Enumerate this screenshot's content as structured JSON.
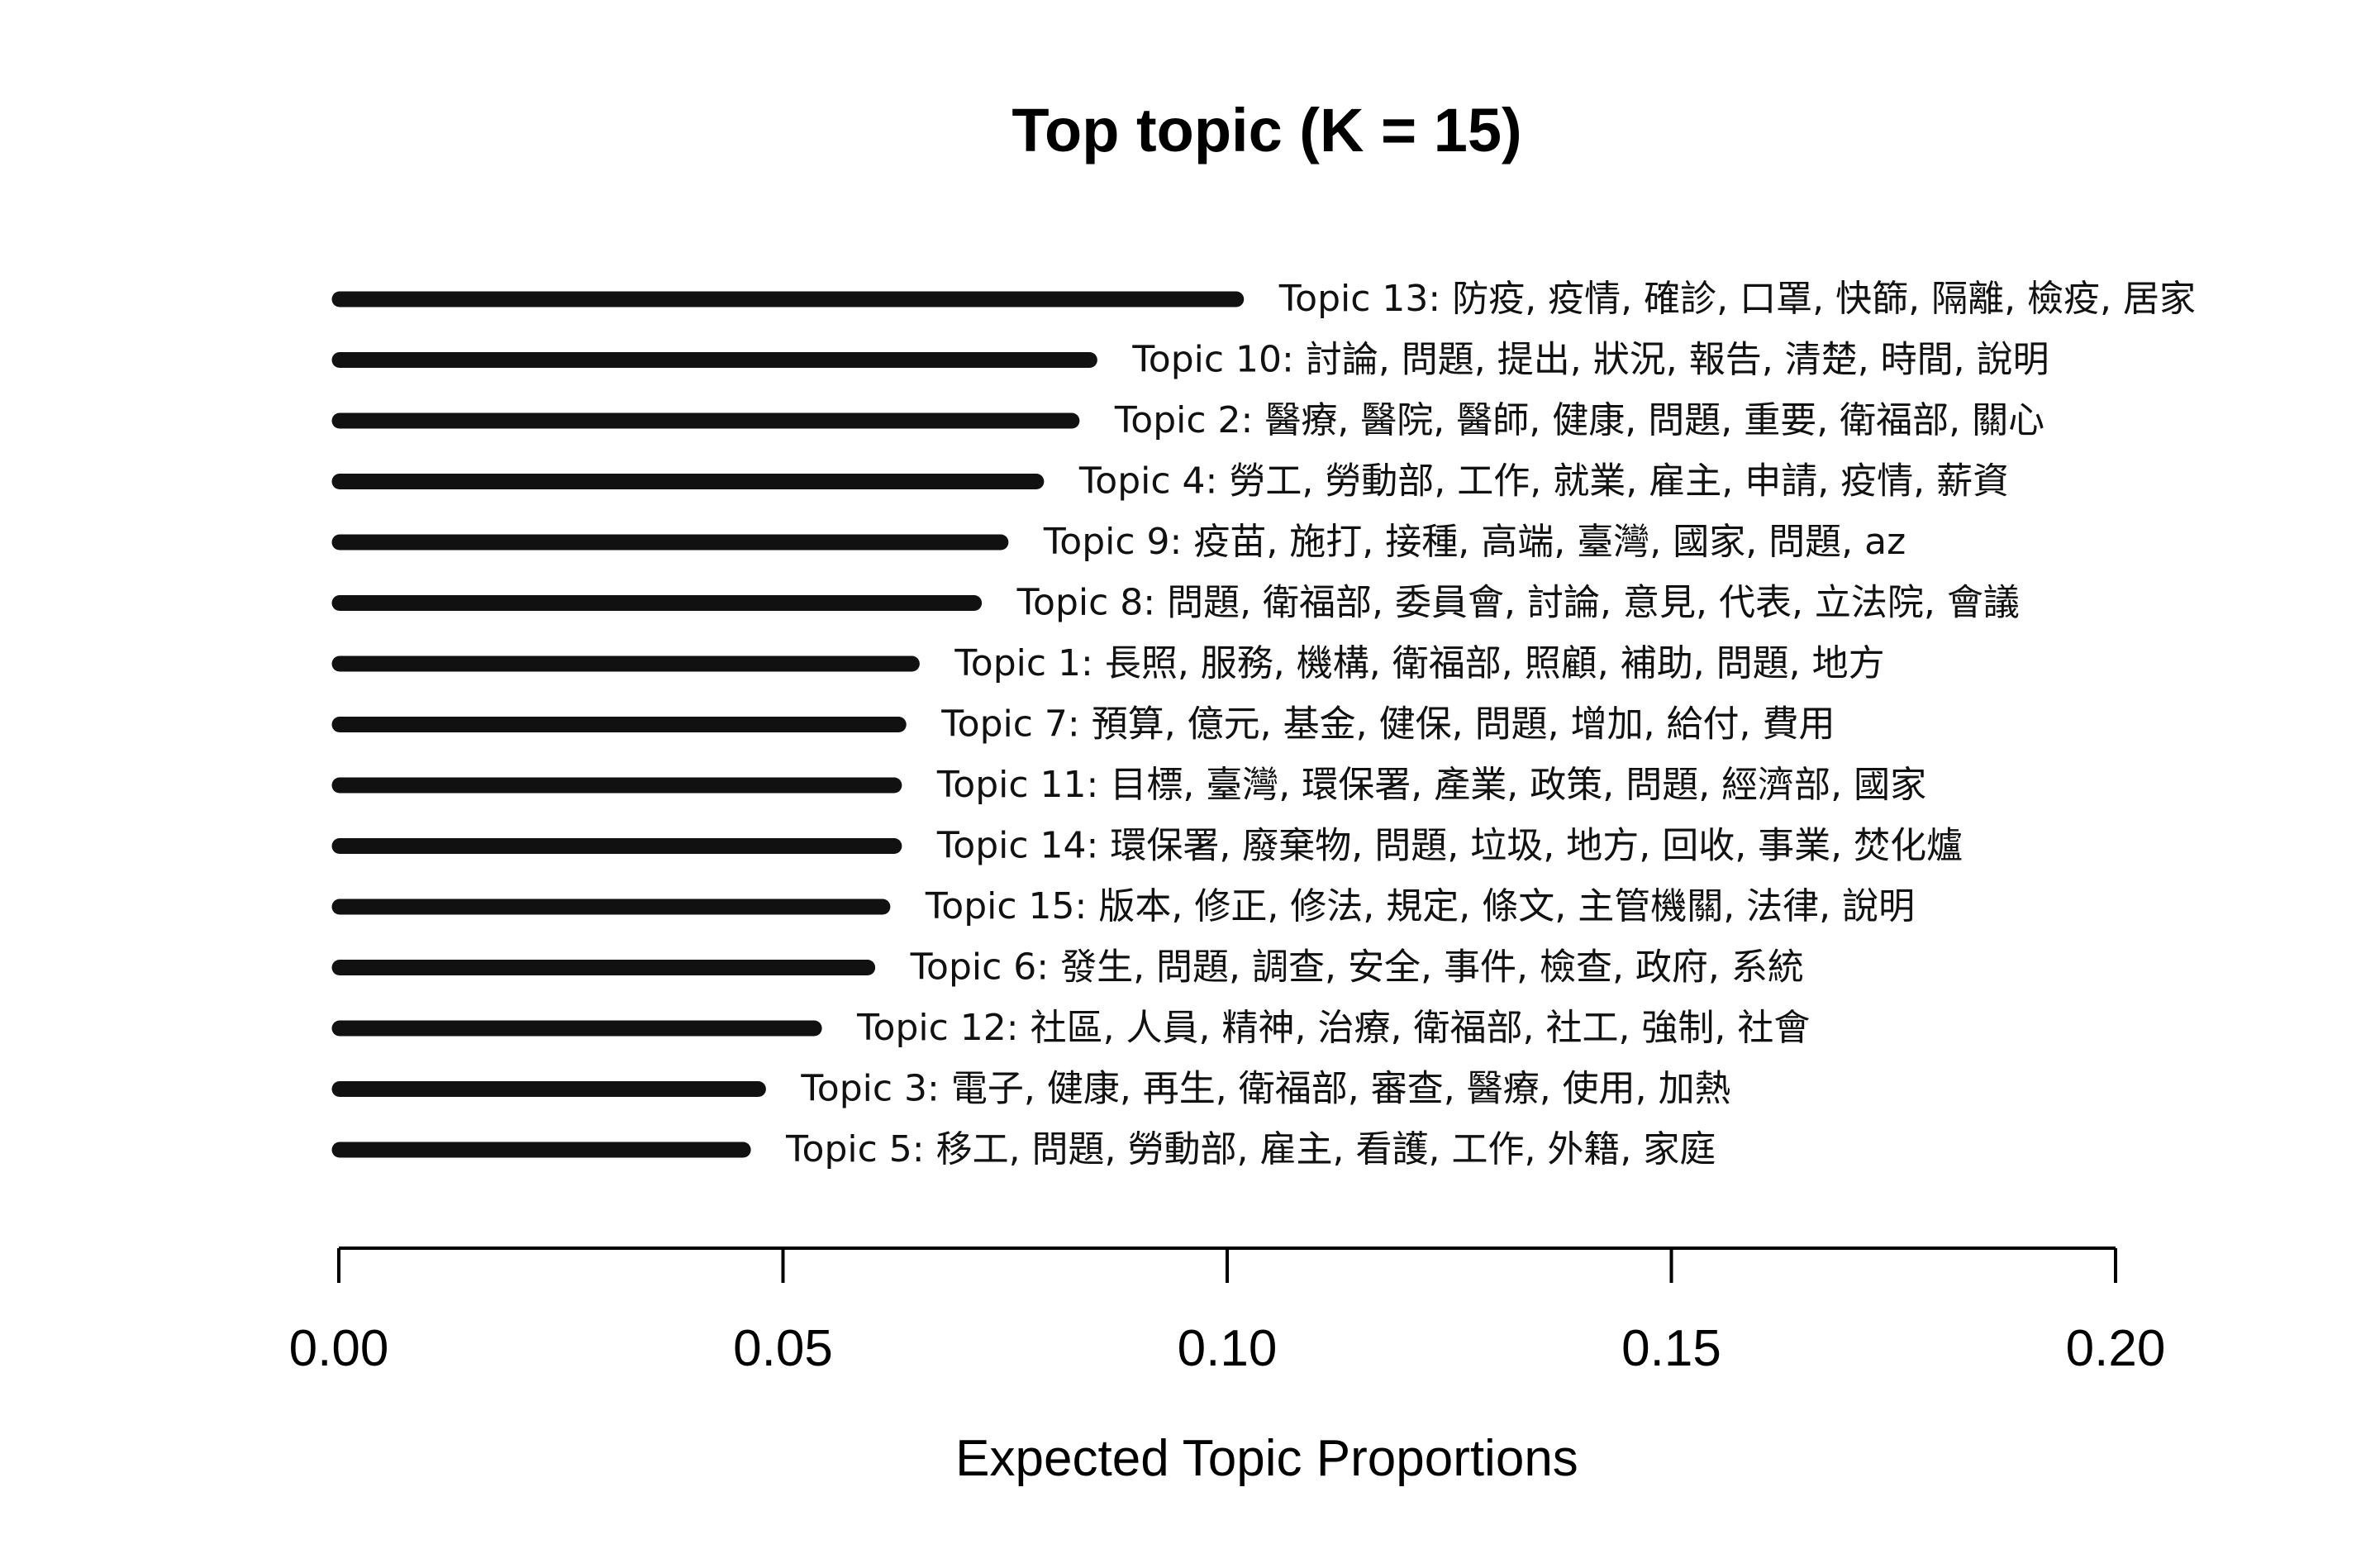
{
  "chart_data": {
    "type": "bar",
    "orientation": "horizontal",
    "title": "Top topic (K = 15)",
    "xlabel": "Expected Topic Proportions",
    "ylabel": "",
    "xlim": [
      0,
      0.2
    ],
    "xticks": [
      "0.00",
      "0.05",
      "0.10",
      "0.15",
      "0.20"
    ],
    "grid": false,
    "bar_color": "#111111",
    "categories": [
      "Topic 13: 防疫, 疫情, 確診, 口罩, 快篩, 隔離, 檢疫, 居家",
      "Topic 10: 討論, 問題, 提出, 狀況, 報告, 清楚, 時間, 說明",
      "Topic 2: 醫療, 醫院, 醫師, 健康, 問題, 重要, 衛福部, 關心",
      "Topic 4: 勞工, 勞動部, 工作, 就業, 雇主, 申請, 疫情, 薪資",
      "Topic 9: 疫苗, 施打, 接種, 高端, 臺灣, 國家, 問題, az",
      "Topic 8: 問題, 衛福部, 委員會, 討論, 意見, 代表, 立法院, 會議",
      "Topic 1: 長照, 服務, 機構, 衛福部, 照顧, 補助, 問題, 地方",
      "Topic 7: 預算, 億元, 基金, 健保, 問題, 增加, 給付, 費用",
      "Topic 11: 目標, 臺灣, 環保署, 產業, 政策, 問題, 經濟部, 國家",
      "Topic 14: 環保署, 廢棄物, 問題, 垃圾, 地方, 回收, 事業, 焚化爐",
      "Topic 15: 版本, 修正, 修法, 規定, 條文, 主管機關, 法律, 說明",
      "Topic 6: 發生, 問題, 調查, 安全, 事件, 檢查, 政府, 系統",
      "Topic 12: 社區, 人員, 精神, 治療, 衛福部, 社工, 強制, 社會",
      "Topic 3: 電子, 健康, 再生, 衛福部, 審查, 醫療, 使用, 加熱",
      "Topic 5: 移工, 問題, 勞動部, 雇主, 看護, 工作, 外籍, 家庭"
    ],
    "values": [
      0.101,
      0.0845,
      0.0825,
      0.0785,
      0.0745,
      0.0715,
      0.0645,
      0.063,
      0.0625,
      0.0625,
      0.0612,
      0.0595,
      0.0535,
      0.0472,
      0.0455
    ]
  }
}
